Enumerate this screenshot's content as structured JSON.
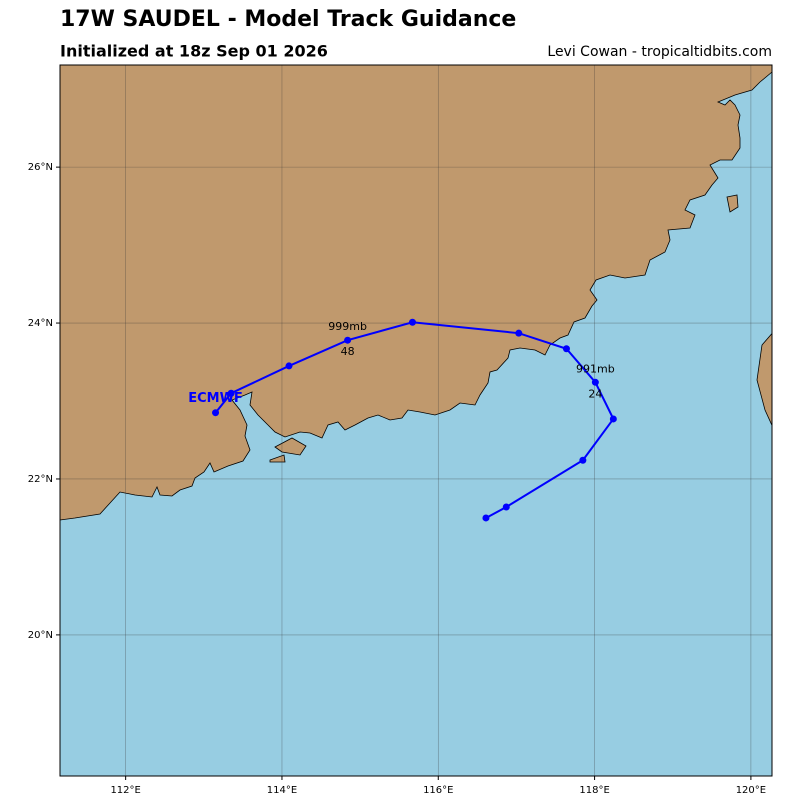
{
  "header": {
    "title": "17W SAUDEL - Model Track Guidance",
    "subtitle": "Initialized at 18z Sep 01 2026",
    "credit": "Levi Cowan - tropicaltidbits.com"
  },
  "map": {
    "xlim": [
      111.16,
      120.27
    ],
    "ylim": [
      18.19,
      27.31
    ],
    "xticks": [
      {
        "value": 112,
        "label": "112°E"
      },
      {
        "value": 114,
        "label": "114°E"
      },
      {
        "value": 116,
        "label": "116°E"
      },
      {
        "value": 118,
        "label": "118°E"
      },
      {
        "value": 120,
        "label": "120°E"
      }
    ],
    "yticks": [
      {
        "value": 20,
        "label": "20°N"
      },
      {
        "value": 22,
        "label": "22°N"
      },
      {
        "value": 24,
        "label": "24°N"
      },
      {
        "value": 26,
        "label": "26°N"
      }
    ],
    "grid": true,
    "tracks": [
      {
        "name": "ECMWF",
        "color": "#0000ff",
        "lon": [
          116.61,
          116.87,
          117.85,
          118.24,
          118.01,
          117.64,
          117.03,
          115.67,
          114.84,
          114.09,
          113.35,
          113.15
        ],
        "lat": [
          21.5,
          21.64,
          22.24,
          22.77,
          23.24,
          23.67,
          23.87,
          24.01,
          23.78,
          23.45,
          23.1,
          22.85
        ],
        "point_labels": [
          {
            "index": 4,
            "pressure": "991mb",
            "hour": 24
          },
          {
            "index": 8,
            "pressure": "999mb",
            "hour": 48
          }
        ]
      }
    ]
  }
}
